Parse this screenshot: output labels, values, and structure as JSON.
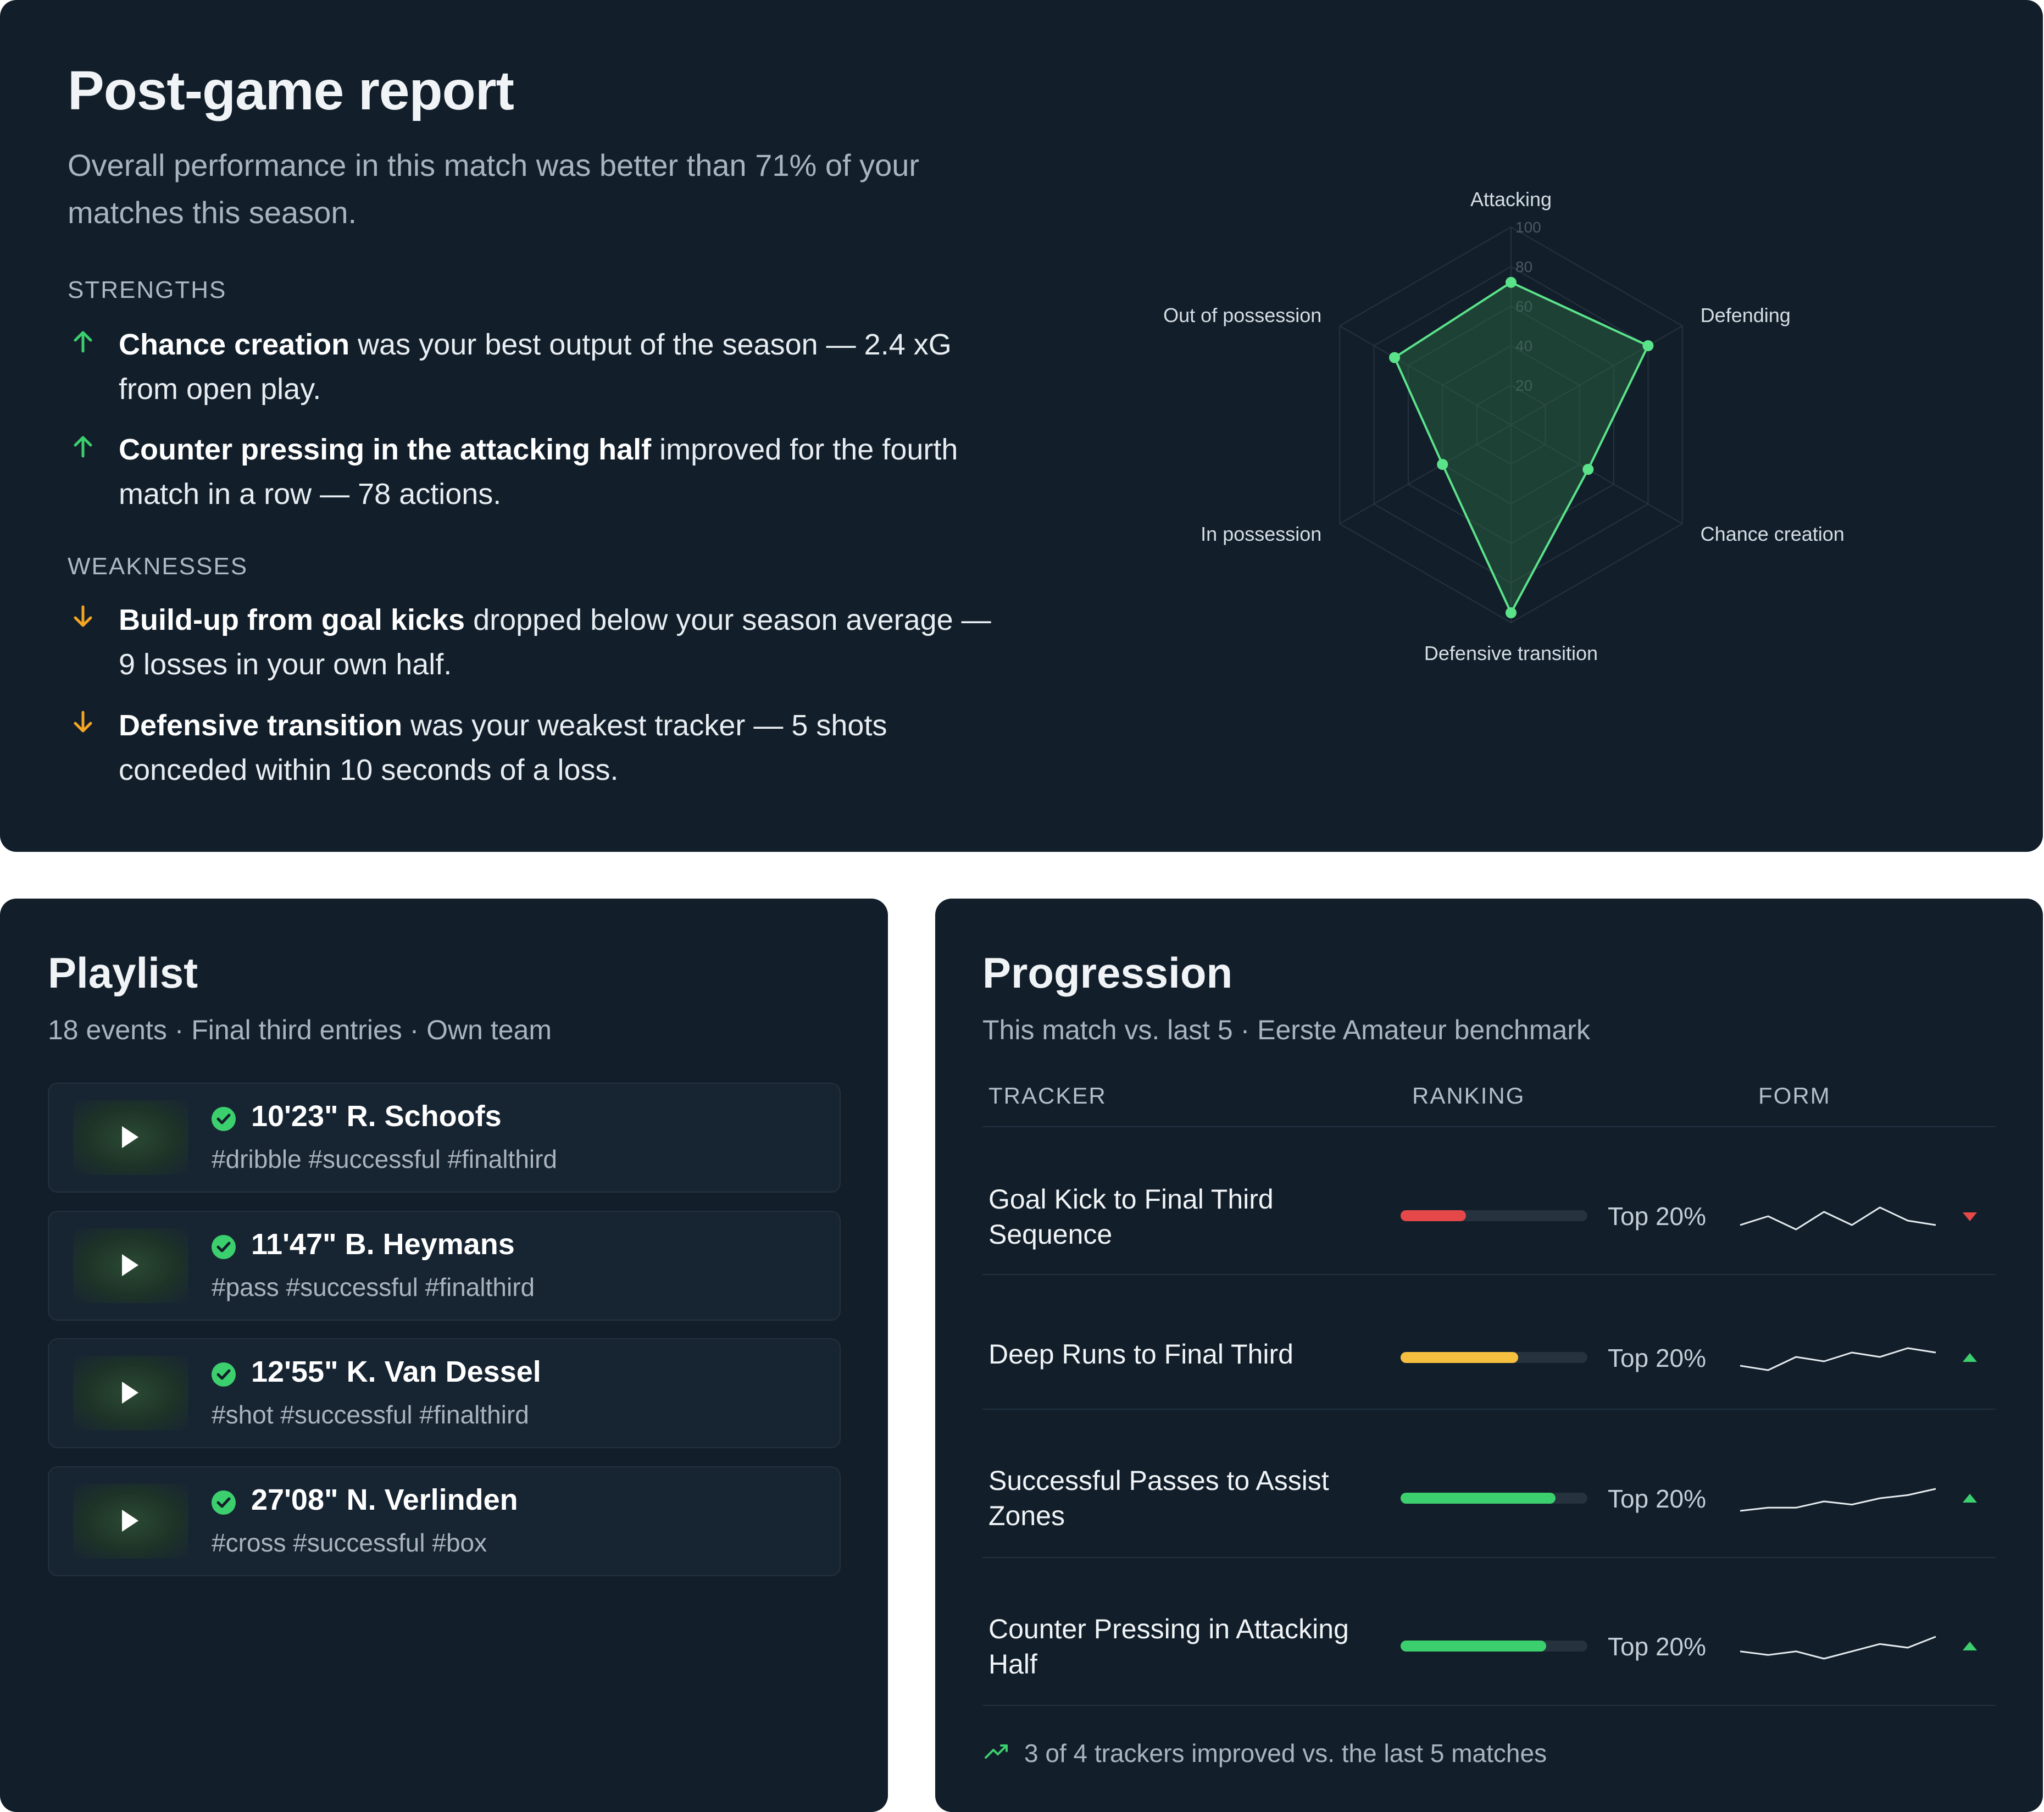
{
  "report": {
    "title": "Post-game report",
    "summary": "Overall performance in this match was better than 71% of your matches this season.",
    "strengths_label": "STRENGTHS",
    "strengths": [
      {
        "bold": "Chance creation",
        "text": " was your best output of the season — 2.4 xG from open play."
      },
      {
        "bold": "Counter pressing in the attacking half",
        "text": " improved for the fourth match in a row — 78 actions."
      }
    ],
    "weaknesses_label": "WEAKNESSES",
    "weaknesses": [
      {
        "bold": "Build-up from goal kicks",
        "text": " dropped below your season average — 9 losses in your own half."
      },
      {
        "bold": "Defensive transition",
        "text": " was your weakest tracker — 5 shots conceded within 10 seconds of a loss."
      }
    ],
    "colors": {
      "up": "#3ccf6e",
      "down": "#f5a524"
    }
  },
  "chart_data": {
    "type": "radar",
    "axes": [
      "Attacking",
      "Defending",
      "Chance creation",
      "Defensive transition",
      "In possession",
      "Out of possession"
    ],
    "values": [
      72,
      80,
      45,
      95,
      40,
      68
    ],
    "ticks": [
      20,
      40,
      60,
      80,
      100
    ],
    "range": [
      0,
      100
    ],
    "colors": {
      "line": "#5be38a",
      "fill": "#2f6b45",
      "grid": "#26333f"
    }
  },
  "playlist": {
    "title": "Playlist",
    "meta": "18 events · Final third entries · Own team",
    "items": [
      {
        "title": "10'23\" R. Schoofs",
        "tags": "#dribble #successful #finalthird"
      },
      {
        "title": "11'47\" B. Heymans",
        "tags": "#pass #successful #finalthird"
      },
      {
        "title": "12'55\" K. Van Dessel",
        "tags": "#shot #successful #finalthird"
      },
      {
        "title": "27'08\" N. Verlinden",
        "tags": "#cross #successful #box"
      }
    ]
  },
  "progression": {
    "title": "Progression",
    "meta": "This match vs. last 5 · Eerste Amateur benchmark",
    "headers": {
      "tracker": "TRACKER",
      "ranking": "RANKING",
      "form": "FORM"
    },
    "rows": [
      {
        "name": "Goal Kick to Final Third Sequence",
        "rank_label": "Top 20%",
        "bar_level": 0.35,
        "bar_color": "#e54848",
        "trend": "down",
        "trend_color": "#e54848",
        "form": [
          3,
          5,
          2,
          6,
          3,
          7,
          4,
          3
        ]
      },
      {
        "name": "Deep Runs to Final Third",
        "rank_label": "Top 20%",
        "bar_level": 0.63,
        "bar_color": "#f5c040",
        "trend": "up",
        "trend_color": "#3ccf6e",
        "form": [
          4,
          3,
          6,
          5,
          7,
          6,
          8,
          7
        ]
      },
      {
        "name": "Successful Passes to Assist Zones",
        "rank_label": "Top 20%",
        "bar_level": 0.83,
        "bar_color": "#3ccf6e",
        "trend": "up",
        "trend_color": "#3ccf6e",
        "form": [
          1,
          2,
          2,
          4,
          3,
          5,
          6,
          8
        ]
      },
      {
        "name": "Counter Pressing in Attacking Half",
        "rank_label": "Top 20%",
        "bar_level": 0.78,
        "bar_color": "#3ccf6e",
        "trend": "up",
        "trend_color": "#3ccf6e",
        "form": [
          3,
          2,
          3,
          1,
          3,
          5,
          4,
          7
        ]
      }
    ],
    "footer": "3 of 4 trackers improved vs. the last 5 matches"
  }
}
